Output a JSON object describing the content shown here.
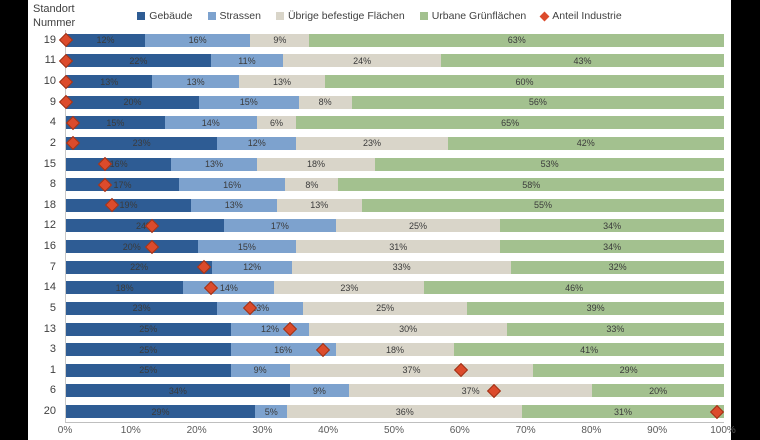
{
  "axis_title": {
    "line1": "Standort",
    "line2": "Nummer"
  },
  "legend": [
    {
      "label": "Gebäude",
      "color": "#2e5c94",
      "marker": "square"
    },
    {
      "label": "Strassen",
      "color": "#7da2ce",
      "marker": "square"
    },
    {
      "label": "Übrige befestige Flächen",
      "color": "#d9d5c9",
      "marker": "square"
    },
    {
      "label": "Urbane Grünflächen",
      "color": "#a3c18f",
      "marker": "square"
    },
    {
      "label": "Anteil Industrie",
      "color": "#dc4b2c",
      "marker": "diamond"
    }
  ],
  "chart_data": {
    "type": "bar",
    "orientation": "horizontal",
    "stacked": true,
    "value_unit": "%",
    "categories": [
      "19",
      "11",
      "10",
      "9",
      "4",
      "2",
      "15",
      "8",
      "18",
      "12",
      "16",
      "7",
      "14",
      "5",
      "13",
      "3",
      "1",
      "6",
      "20"
    ],
    "series": [
      {
        "name": "Gebäude",
        "values": [
          12,
          22,
          13,
          20,
          15,
          23,
          16,
          17,
          19,
          24,
          20,
          22,
          18,
          23,
          25,
          25,
          25,
          34,
          29
        ]
      },
      {
        "name": "Strassen",
        "values": [
          16,
          11,
          13,
          15,
          14,
          12,
          13,
          16,
          13,
          17,
          15,
          12,
          14,
          13,
          12,
          16,
          9,
          9,
          5
        ]
      },
      {
        "name": "Übrige befestige Flächen",
        "values": [
          9,
          24,
          13,
          8,
          6,
          23,
          18,
          8,
          13,
          25,
          31,
          33,
          23,
          25,
          30,
          18,
          37,
          37,
          36
        ]
      },
      {
        "name": "Urbane Grünflächen",
        "values": [
          63,
          43,
          60,
          56,
          65,
          42,
          53,
          58,
          55,
          34,
          34,
          32,
          46,
          39,
          33,
          41,
          29,
          20,
          31
        ]
      },
      {
        "name": "Anteil Industrie",
        "marker": "diamond",
        "values": [
          0,
          0,
          0,
          0,
          1,
          1,
          6,
          6,
          7,
          13,
          13,
          21,
          22,
          28,
          34,
          39,
          60,
          65,
          99
        ]
      }
    ],
    "x_ticks": [
      "0%",
      "10%",
      "20%",
      "30%",
      "40%",
      "50%",
      "60%",
      "70%",
      "80%",
      "90%",
      "100%"
    ],
    "xlim": [
      0,
      100
    ],
    "grid": false,
    "legend_position": "top"
  }
}
